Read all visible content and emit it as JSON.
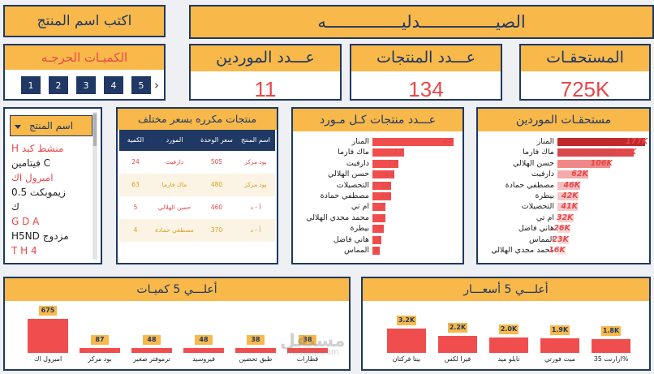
{
  "search": {
    "title": "اكتب اسم المنتج"
  },
  "header": {
    "title": "الصيـــــــــــــــدليـــــــــــــــه"
  },
  "nav": {
    "title": "الكميـات الحرجـه",
    "pages": [
      "1",
      "2",
      "3",
      "4",
      "5"
    ],
    "arrow": "›"
  },
  "kpis": [
    {
      "title": "عـــدد الموردين",
      "value": "11"
    },
    {
      "title": "عـــدد المنتجات",
      "value": "134"
    },
    {
      "title": "المستحقـات",
      "value": "725K"
    }
  ],
  "slicer": {
    "title": "اسم المنتج",
    "items": [
      {
        "text": "H منشط كبد",
        "color": "#e8484a"
      },
      {
        "text": "فيتامين C",
        "color": "#222222"
      },
      {
        "text": "امبرول اك",
        "color": "#e8484a"
      },
      {
        "text": "زيموبكت 0.5",
        "color": "#222222"
      },
      {
        "text": "ك",
        "color": "#222222"
      },
      {
        "text": "G D A",
        "color": "#e8484a"
      },
      {
        "text": "H5ND مزدوج",
        "color": "#222222"
      },
      {
        "text": "T H 4",
        "color": "#e8484a"
      }
    ]
  },
  "dup_table": {
    "title": "منتجات مكرره بسعر مختلف",
    "columns": [
      "اسم المنتج",
      "سعر الوحدة",
      "المورد",
      "الكمية"
    ],
    "rows": [
      [
        "بود مركز",
        "505",
        "دارفيت",
        "24"
      ],
      [
        "بود مركز",
        "480",
        "ماك فارما",
        "63"
      ],
      [
        "أ - د",
        "460",
        "حسن الهلالي",
        "5"
      ],
      [
        "أ - د",
        "370",
        "مصطفي حمادة",
        "4"
      ]
    ]
  },
  "chart_data": [
    {
      "type": "bar",
      "orientation": "horizontal",
      "title": "عـــدد منتجات كـل مـورد",
      "categories": [
        "المنار",
        "ماك فارما",
        "دارفيت",
        "حسن الهلالي",
        "التحصيلات",
        "مصطفي حمادة",
        "ام تي",
        "محمد مجدي الهلالي",
        "بيطرة",
        "هاني فاضل",
        "المماس"
      ],
      "values": [
        44,
        17,
        14,
        12,
        10,
        10,
        7,
        7,
        6,
        5,
        4
      ],
      "value_labels": [
        "44",
        "17",
        "14",
        "12",
        "10",
        "10",
        "7",
        "7",
        "6",
        "5",
        "4"
      ],
      "color": "#f04e4e"
    },
    {
      "type": "bar",
      "orientation": "horizontal",
      "title": "مستحقـات الموردين",
      "categories": [
        "المنار",
        "ماك فارما",
        "حسن الهلالي",
        "دارفيت",
        "مصطفي حمادة",
        "بيطرة",
        "التحصيلات",
        "ام تي",
        "هاني فاضل",
        "المماس",
        "محمد مجدي الهلالي"
      ],
      "values": [
        177,
        154,
        106,
        62,
        46,
        42,
        41,
        32,
        26,
        23,
        16
      ],
      "value_labels": [
        "177K",
        "154K",
        "106K",
        "62K",
        "46K",
        "42K",
        "41K",
        "32K",
        "26K",
        "23K",
        "16K"
      ],
      "colors": [
        "#c0282c",
        "#d9484a",
        "#f08888",
        "#f4aaaa",
        "#f7bcbc",
        "#f8c6c6",
        "#f8c8c8",
        "#fad2d2",
        "#fad8d8",
        "#fbdcdc",
        "#fce2e2"
      ]
    },
    {
      "type": "bar",
      "title": "أعلـــي 5 كميـات",
      "categories": [
        "امبرول اك",
        "بود مركز",
        "ترموفتر صغير",
        "فيروسيد",
        "طبق تحضين",
        "قطارات"
      ],
      "values": [
        675,
        87,
        48,
        48,
        38,
        38
      ],
      "value_labels": [
        "675",
        "87",
        "48",
        "48",
        "38",
        "38"
      ],
      "color": "#f04e4e"
    },
    {
      "type": "bar",
      "title": "أعلـــي 5 أسعـــار",
      "categories": [
        "بيتا فركتان",
        "فيرا لكس",
        "تايلو ميد",
        "ميث فورتي",
        "%ازارنت 35"
      ],
      "values": [
        3.2,
        2.2,
        2.0,
        1.9,
        1.8
      ],
      "value_labels": [
        "3.2K",
        "2.2K",
        "2.0K",
        "1.9K",
        "1.8K"
      ],
      "color": "#f04e4e"
    }
  ],
  "watermark": {
    "text": "مستقل",
    "sub": "mostaql.com"
  }
}
